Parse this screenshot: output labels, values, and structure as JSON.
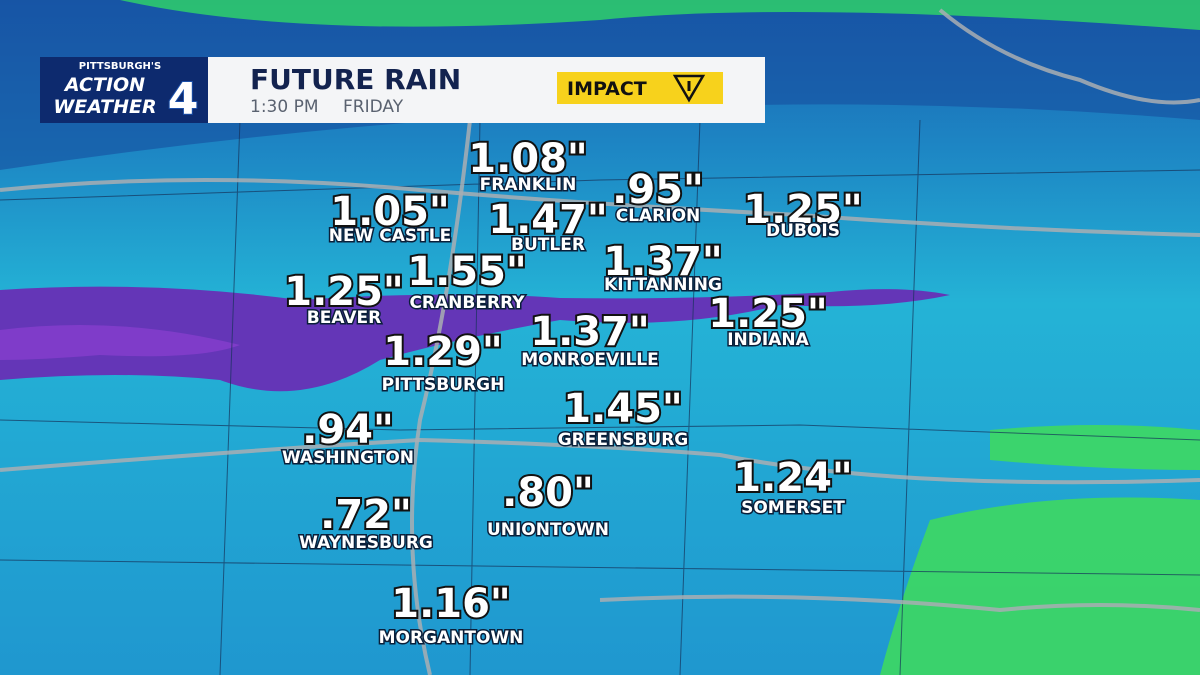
{
  "header": {
    "logo": {
      "line1": "PITTSBURGH'S",
      "line2": "ACTION",
      "line3": "WEATHER",
      "channel": "4"
    },
    "title": "FUTURE RAIN",
    "time": "1:30 PM",
    "day": "FRIDAY",
    "badge": "IMPACT"
  },
  "labels": [
    {
      "amount": "1.08\"",
      "city": "FRANKLIN"
    },
    {
      "amount": ".95\"",
      "city": "CLARION"
    },
    {
      "amount": "1.05\"",
      "city": "NEW CASTLE"
    },
    {
      "amount": "1.47\"",
      "city": "BUTLER"
    },
    {
      "amount": "1.25\"",
      "city": "DUBOIS"
    },
    {
      "amount": "1.37\"",
      "city": "KITTANNING"
    },
    {
      "amount": "1.25\"",
      "city": "BEAVER"
    },
    {
      "amount": "1.55\"",
      "city": "CRANBERRY"
    },
    {
      "amount": "1.37\"",
      "city": "MONROEVILLE"
    },
    {
      "amount": "1.25\"",
      "city": "INDIANA"
    },
    {
      "amount": "1.29\"",
      "city": "PITTSBURGH"
    },
    {
      "amount": "1.45\"",
      "city": "GREENSBURG"
    },
    {
      "amount": ".94\"",
      "city": "WASHINGTON"
    },
    {
      "amount": "1.24\"",
      "city": "SOMERSET"
    },
    {
      "amount": ".72\"",
      "city": "WAYNESBURG"
    },
    {
      "amount": ".80\"",
      "city": "UNIONTOWN"
    },
    {
      "amount": "1.16\"",
      "city": "MORGANTOWN"
    }
  ]
}
